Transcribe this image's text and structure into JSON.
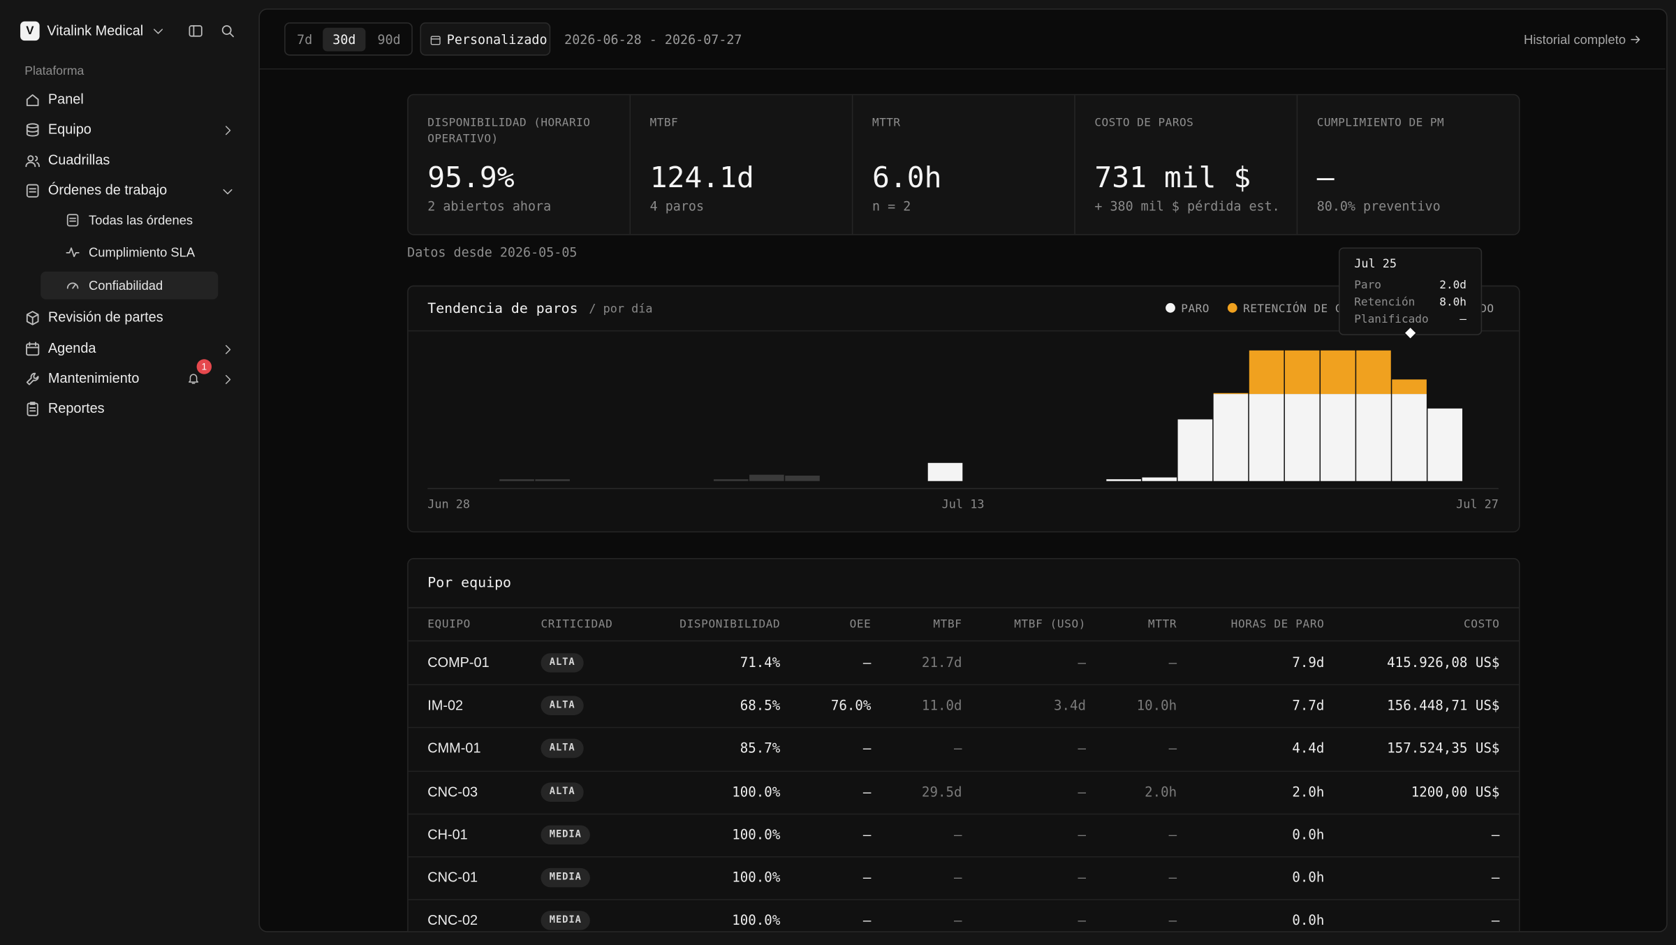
{
  "sidebar": {
    "org_initial": "V",
    "org": "Vitalink Medical",
    "section": "Plataforma",
    "nav": [
      {
        "label": "Panel"
      },
      {
        "label": "Equipo"
      },
      {
        "label": "Cuadrillas"
      },
      {
        "label": "Órdenes de trabajo",
        "children": [
          "Todas las órdenes",
          "Cumplimiento SLA",
          "Confiabilidad"
        ]
      },
      {
        "label": "Revisión de partes"
      },
      {
        "label": "Agenda"
      },
      {
        "label": "Mantenimiento",
        "badge": 1
      },
      {
        "label": "Reportes"
      }
    ]
  },
  "toolbar": {
    "ranges": [
      "7d",
      "30d",
      "90d"
    ],
    "custom": "Personalizado",
    "date_range": "2026-06-28 - 2026-07-27",
    "history": "Historial completo"
  },
  "kpis": [
    {
      "label": "DISPONIBILIDAD (HORARIO OPERATIVO)",
      "value": "95.9%",
      "sub": "2 abiertos ahora"
    },
    {
      "label": "MTBF",
      "value": "124.1d",
      "sub": "4 paros"
    },
    {
      "label": "MTTR",
      "value": "6.0h",
      "sub": "n = 2"
    },
    {
      "label": "COSTO DE PAROS",
      "value": "731 mil $",
      "sub": "+ 380 mil $ pérdida est."
    },
    {
      "label": "CUMPLIMIENTO DE PM",
      "value": "—",
      "sub": "80.0% preventivo"
    }
  ],
  "data_since": "Datos desde 2026-05-05",
  "chart_data": {
    "type": "bar",
    "stacked": true,
    "title": "Tendencia de paros",
    "subtitle": "/ por día",
    "categories": [
      "Jun 28",
      null,
      null,
      null,
      null,
      null,
      null,
      null,
      null,
      null,
      null,
      null,
      null,
      null,
      null,
      "Jul 13",
      null,
      null,
      null,
      null,
      null,
      null,
      null,
      null,
      null,
      null,
      null,
      null,
      null,
      "Jul 27"
    ],
    "series": [
      {
        "name": "PARO",
        "color": "#f4f4f4",
        "values": [
          0,
          0,
          0,
          0,
          0,
          0,
          0,
          0,
          0,
          0,
          0,
          0,
          0,
          0,
          10,
          0,
          0,
          0,
          0,
          1,
          2,
          34,
          48,
          48,
          48,
          48,
          48,
          48,
          40,
          0
        ]
      },
      {
        "name": "RETENCIÓN DE CALIDAD",
        "color": "#f0a11f",
        "values": [
          0,
          0,
          0,
          0,
          0,
          0,
          0,
          0,
          0,
          0,
          0,
          0,
          0,
          0,
          0,
          0,
          0,
          0,
          0,
          0,
          0,
          0,
          0.5,
          24,
          24,
          24,
          24,
          8,
          0,
          0
        ]
      },
      {
        "name": "PLANIFICADO",
        "color": "#3a3a3a",
        "values": [
          0,
          0,
          1,
          1,
          0,
          0,
          0,
          0,
          1,
          3.5,
          3,
          0,
          0,
          0,
          0,
          0,
          0,
          0,
          0,
          0,
          0,
          0,
          0,
          0,
          0,
          0,
          0,
          0,
          0,
          0
        ]
      }
    ],
    "tooltip": {
      "title": "Jul 25",
      "rows": [
        [
          "Paro",
          "2.0d"
        ],
        [
          "Retención",
          "8.0h"
        ],
        [
          "Planificado",
          "—"
        ]
      ]
    }
  },
  "table": {
    "title": "Por equipo",
    "columns": [
      "EQUIPO",
      "CRITICIDAD",
      "DISPONIBILIDAD",
      "OEE",
      "MTBF",
      "MTBF (USO)",
      "MTTR",
      "HORAS DE PARO",
      "COSTO"
    ],
    "rows": [
      [
        "COMP-01",
        "ALTA",
        "71.4%",
        "—",
        "21.7d",
        "—",
        "—",
        "7.9d",
        "415.926,08 US$"
      ],
      [
        "IM-02",
        "ALTA",
        "68.5%",
        "76.0%",
        "11.0d",
        "3.4d",
        "10.0h",
        "7.7d",
        "156.448,71 US$"
      ],
      [
        "CMM-01",
        "ALTA",
        "85.7%",
        "—",
        "—",
        "—",
        "—",
        "4.4d",
        "157.524,35 US$"
      ],
      [
        "CNC-03",
        "ALTA",
        "100.0%",
        "—",
        "29.5d",
        "—",
        "2.0h",
        "2.0h",
        "1200,00 US$"
      ],
      [
        "CH-01",
        "MEDIA",
        "100.0%",
        "—",
        "—",
        "—",
        "—",
        "0.0h",
        "—"
      ],
      [
        "CNC-01",
        "MEDIA",
        "100.0%",
        "—",
        "—",
        "—",
        "—",
        "0.0h",
        "—"
      ],
      [
        "CNC-02",
        "MEDIA",
        "100.0%",
        "—",
        "—",
        "—",
        "—",
        "0.0h",
        "—"
      ]
    ]
  }
}
